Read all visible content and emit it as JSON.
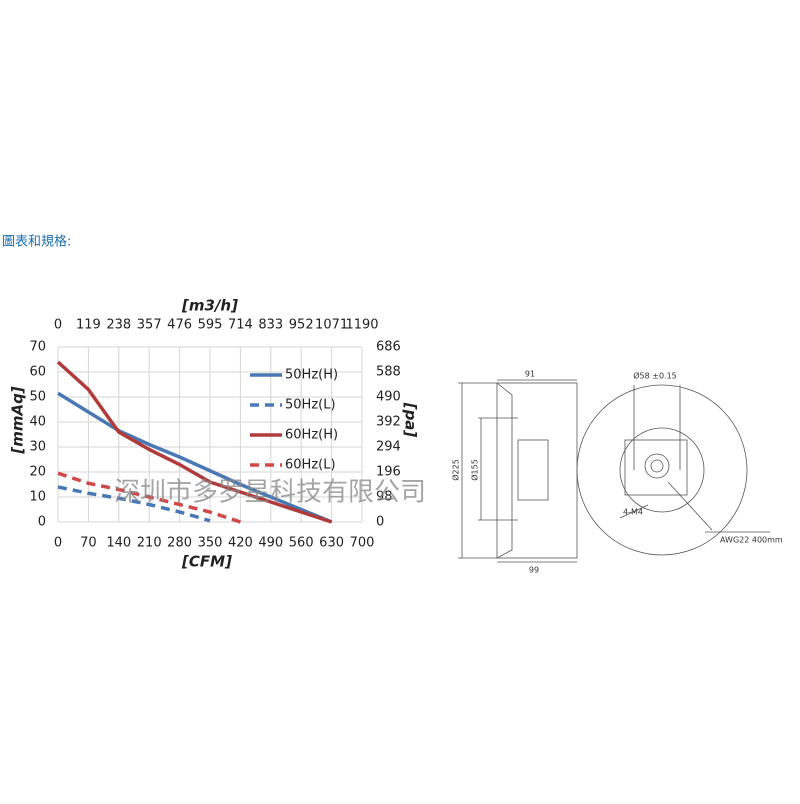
{
  "header": "圖表和規格:",
  "watermark": "深圳市多罗星科技有限公司",
  "chart_data": {
    "type": "line",
    "x": [
      0,
      70,
      140,
      210,
      280,
      350,
      420,
      490,
      560,
      630
    ],
    "xlabel": "[CFM]",
    "ylabel": "[mmAq]",
    "x2label": "[m3/h]",
    "y2label": "[pa]",
    "xlim": [
      0,
      700
    ],
    "xticks": [
      0,
      70,
      140,
      210,
      280,
      350,
      420,
      490,
      560,
      630,
      700
    ],
    "x2lim": [
      0,
      1190
    ],
    "x2ticks": [
      0,
      119,
      238,
      357,
      476,
      595,
      714,
      833,
      952,
      1071,
      1190
    ],
    "ylim": [
      0,
      70
    ],
    "yticks": [
      0,
      10,
      20,
      30,
      40,
      50,
      60,
      70
    ],
    "y2lim": [
      0,
      686
    ],
    "y2ticks": [
      0,
      98,
      196,
      294,
      392,
      490,
      588,
      686
    ],
    "grid": true,
    "series": [
      {
        "name": "50Hz(H)",
        "color": "#4a78b4",
        "line_style": "solid",
        "values": [
          51.5,
          44,
          36.5,
          31,
          26,
          20.5,
          15,
          10,
          5,
          0
        ]
      },
      {
        "name": "50Hz(L)",
        "color": "#4a78b4",
        "line_style": "dashed",
        "values": [
          14,
          11.5,
          9.5,
          7,
          4,
          0.5,
          null,
          null,
          null,
          null
        ]
      },
      {
        "name": "60Hz(H)",
        "color": "#b13a3a",
        "line_style": "solid",
        "values": [
          64,
          53,
          36,
          29,
          23,
          16,
          12,
          8,
          4,
          0
        ]
      },
      {
        "name": "60Hz(L)",
        "color": "#d04848",
        "line_style": "dashed",
        "values": [
          19.5,
          15.5,
          13,
          10,
          7,
          4,
          0,
          null,
          null,
          null
        ]
      }
    ]
  },
  "diagram": {
    "dims": [
      "91",
      "Ø225",
      "Ø155",
      "99",
      "Ø58 ±0.15",
      "4-M4",
      "AWG22 400mm"
    ]
  }
}
